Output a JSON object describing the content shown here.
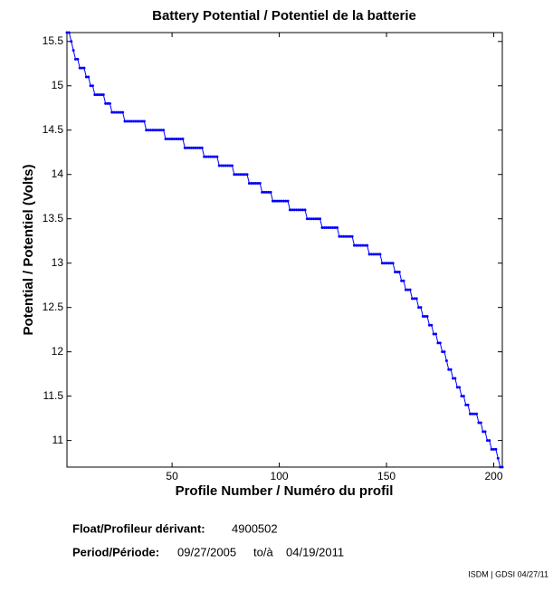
{
  "chart_data": {
    "type": "line",
    "title": "Battery Potential / Potentiel de la batterie",
    "x_label": "Profile Number / Numéro du profil",
    "y_label": "Potential / Potentiel (Volts)",
    "float_label": "Float/Profileur dérivant:",
    "float_id": "4900502",
    "period_label": "Period/Période:",
    "period_start": "09/27/2005",
    "period_sep": "to/à",
    "period_end": "04/19/2011",
    "credit": "ISDM | GDSI 04/27/11",
    "color": "#0000ff",
    "xlim": [
      1,
      204
    ],
    "ylim": [
      10.7,
      15.6
    ],
    "xticks": [
      50,
      100,
      150,
      200
    ],
    "yticks": [
      11,
      11.5,
      12,
      12.5,
      13,
      13.5,
      14,
      14.5,
      15,
      15.5
    ],
    "x": [
      1,
      2,
      3,
      4,
      5,
      6,
      7,
      8,
      9,
      10,
      11,
      12,
      13,
      14,
      15,
      16,
      17,
      18,
      19,
      20,
      21,
      22,
      23,
      24,
      25,
      26,
      27,
      28,
      29,
      30,
      31,
      32,
      33,
      34,
      35,
      36,
      37,
      38,
      39,
      40,
      41,
      42,
      43,
      44,
      45,
      46,
      47,
      48,
      49,
      50,
      51,
      52,
      53,
      54,
      55,
      56,
      57,
      58,
      59,
      60,
      61,
      62,
      63,
      64,
      65,
      66,
      67,
      68,
      69,
      70,
      71,
      72,
      73,
      74,
      75,
      76,
      77,
      78,
      79,
      80,
      81,
      82,
      83,
      84,
      85,
      86,
      87,
      88,
      89,
      90,
      91,
      92,
      93,
      94,
      95,
      96,
      97,
      98,
      99,
      100,
      101,
      102,
      103,
      104,
      105,
      106,
      107,
      108,
      109,
      110,
      111,
      112,
      113,
      114,
      115,
      116,
      117,
      118,
      119,
      120,
      121,
      122,
      123,
      124,
      125,
      126,
      127,
      128,
      129,
      130,
      131,
      132,
      133,
      134,
      135,
      136,
      137,
      138,
      139,
      140,
      141,
      142,
      143,
      144,
      145,
      146,
      147,
      148,
      149,
      150,
      151,
      152,
      153,
      154,
      155,
      156,
      157,
      158,
      159,
      160,
      161,
      162,
      163,
      164,
      165,
      166,
      167,
      168,
      169,
      170,
      171,
      172,
      173,
      174,
      175,
      176,
      177,
      178,
      179,
      180,
      181,
      182,
      183,
      184,
      185,
      186,
      187,
      188,
      189,
      190,
      191,
      192,
      193,
      194,
      195,
      196,
      197,
      198,
      199,
      200,
      201,
      202,
      203,
      204
    ],
    "values": [
      15.6,
      15.6,
      15.5,
      15.4,
      15.3,
      15.3,
      15.2,
      15.2,
      15.2,
      15.1,
      15.1,
      15.0,
      15.0,
      14.9,
      14.9,
      14.9,
      14.9,
      14.9,
      14.8,
      14.8,
      14.8,
      14.7,
      14.7,
      14.7,
      14.7,
      14.7,
      14.7,
      14.6,
      14.6,
      14.6,
      14.6,
      14.6,
      14.6,
      14.6,
      14.6,
      14.6,
      14.6,
      14.5,
      14.5,
      14.5,
      14.5,
      14.5,
      14.5,
      14.5,
      14.5,
      14.5,
      14.4,
      14.4,
      14.4,
      14.4,
      14.4,
      14.4,
      14.4,
      14.4,
      14.4,
      14.3,
      14.3,
      14.3,
      14.3,
      14.3,
      14.3,
      14.3,
      14.3,
      14.3,
      14.2,
      14.2,
      14.2,
      14.2,
      14.2,
      14.2,
      14.2,
      14.1,
      14.1,
      14.1,
      14.1,
      14.1,
      14.1,
      14.1,
      14.0,
      14.0,
      14.0,
      14.0,
      14.0,
      14.0,
      14.0,
      13.9,
      13.9,
      13.9,
      13.9,
      13.9,
      13.9,
      13.8,
      13.8,
      13.8,
      13.8,
      13.8,
      13.7,
      13.7,
      13.7,
      13.7,
      13.7,
      13.7,
      13.7,
      13.7,
      13.6,
      13.6,
      13.6,
      13.6,
      13.6,
      13.6,
      13.6,
      13.6,
      13.5,
      13.5,
      13.5,
      13.5,
      13.5,
      13.5,
      13.5,
      13.4,
      13.4,
      13.4,
      13.4,
      13.4,
      13.4,
      13.4,
      13.4,
      13.3,
      13.3,
      13.3,
      13.3,
      13.3,
      13.3,
      13.3,
      13.2,
      13.2,
      13.2,
      13.2,
      13.2,
      13.2,
      13.2,
      13.1,
      13.1,
      13.1,
      13.1,
      13.1,
      13.1,
      13.0,
      13.0,
      13.0,
      13.0,
      13.0,
      13.0,
      12.9,
      12.9,
      12.9,
      12.8,
      12.8,
      12.7,
      12.7,
      12.7,
      12.6,
      12.6,
      12.6,
      12.5,
      12.5,
      12.4,
      12.4,
      12.4,
      12.3,
      12.3,
      12.2,
      12.2,
      12.1,
      12.1,
      12.0,
      12.0,
      11.9,
      11.8,
      11.8,
      11.7,
      11.7,
      11.6,
      11.6,
      11.5,
      11.5,
      11.4,
      11.4,
      11.3,
      11.3,
      11.3,
      11.3,
      11.2,
      11.2,
      11.1,
      11.1,
      11.0,
      11.0,
      10.9,
      10.9,
      10.9,
      10.8,
      10.7,
      10.7
    ]
  }
}
